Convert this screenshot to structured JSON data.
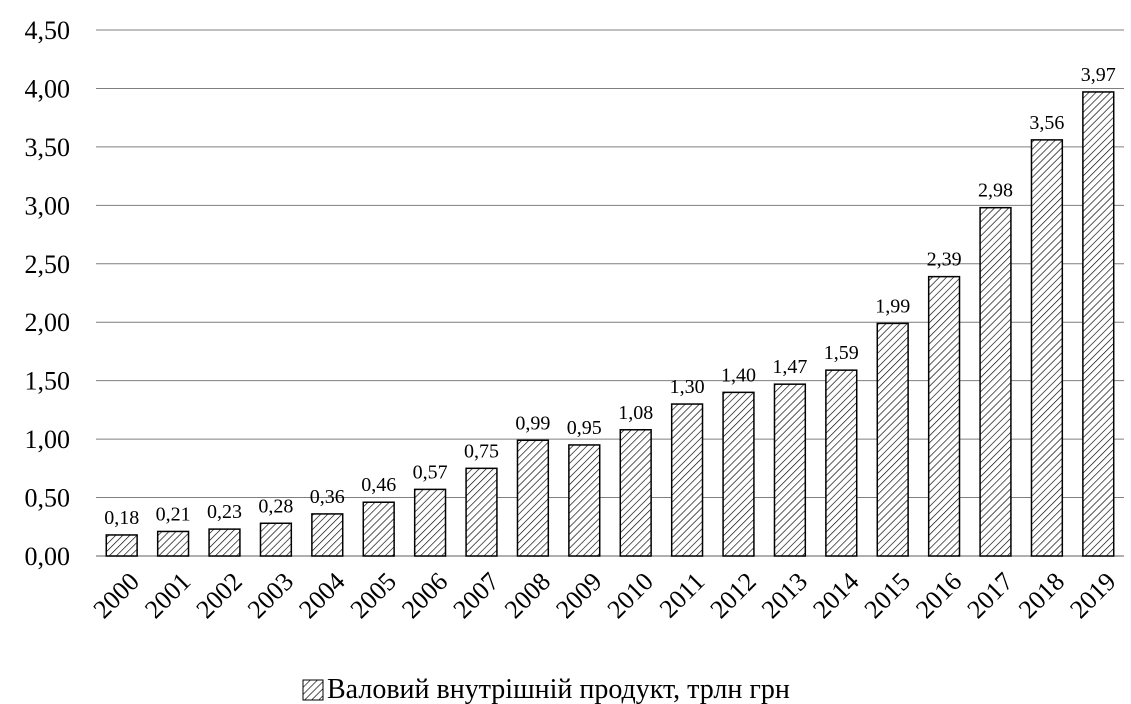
{
  "chart_data": {
    "type": "bar",
    "categories": [
      "2000",
      "2001",
      "2002",
      "2003",
      "2004",
      "2005",
      "2006",
      "2007",
      "2008",
      "2009",
      "2010",
      "2011",
      "2012",
      "2013",
      "2014",
      "2015",
      "2016",
      "2017",
      "2018",
      "2019"
    ],
    "series": [
      {
        "name": "Валовий внутрішній продукт, трлн грн",
        "values": [
          0.18,
          0.21,
          0.23,
          0.28,
          0.36,
          0.46,
          0.57,
          0.75,
          0.99,
          0.95,
          1.08,
          1.3,
          1.4,
          1.47,
          1.59,
          1.99,
          2.39,
          2.98,
          3.56,
          3.97
        ],
        "data_labels": [
          "0,18",
          "0,21",
          "0,23",
          "0,28",
          "0,36",
          "0,46",
          "0,57",
          "0,75",
          "0,99",
          "0,95",
          "1,08",
          "1,30",
          "1,40",
          "1,47",
          "1,59",
          "1,99",
          "2,39",
          "2,98",
          "3,56",
          "3,97"
        ]
      }
    ],
    "y_ticks": [
      "0,00",
      "0,50",
      "1,00",
      "1,50",
      "2,00",
      "2,50",
      "3,00",
      "3,50",
      "4,00",
      "4,50"
    ],
    "ylim": [
      0,
      4.5
    ],
    "grid": true,
    "legend_position": "bottom",
    "bar_pattern": "diagonal-hatch",
    "colors": {
      "bar_stroke": "#000000",
      "hatch": "#000000",
      "grid": "#7f7f7f",
      "axis": "#7f7f7f"
    }
  }
}
